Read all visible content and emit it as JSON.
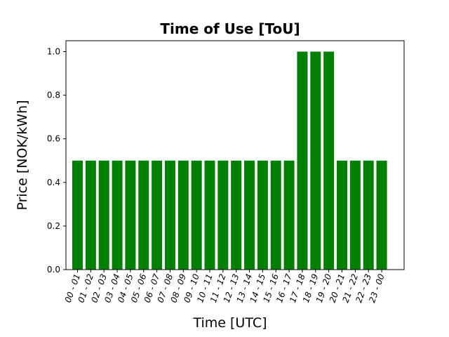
{
  "chart_data": {
    "type": "bar",
    "title": "Time of Use [ToU]",
    "xlabel": "Time [UTC]",
    "ylabel": "Price [NOK/kWh]",
    "categories": [
      "00 - 01",
      "01 - 02",
      "02 - 03",
      "03 - 04",
      "04 - 05",
      "05 - 06",
      "06 - 07",
      "07 - 08",
      "08 - 09",
      "09 - 10",
      "10 - 11",
      "11 - 12",
      "12 - 13",
      "13 - 14",
      "14 - 15",
      "15 - 16",
      "16 - 17",
      "17 - 18",
      "18 - 19",
      "19 - 20",
      "20 - 21",
      "21 - 22",
      "22 - 23",
      "23 - 00"
    ],
    "values": [
      0.5,
      0.5,
      0.5,
      0.5,
      0.5,
      0.5,
      0.5,
      0.5,
      0.5,
      0.5,
      0.5,
      0.5,
      0.5,
      0.5,
      0.5,
      0.5,
      0.5,
      1.0,
      1.0,
      1.0,
      0.5,
      0.5,
      0.5,
      0.5
    ],
    "ylim": [
      0,
      1.05
    ],
    "yticks": [
      "0.0",
      "0.2",
      "0.4",
      "0.6",
      "0.8",
      "1.0"
    ],
    "bar_color": "#008000",
    "grid": false
  }
}
